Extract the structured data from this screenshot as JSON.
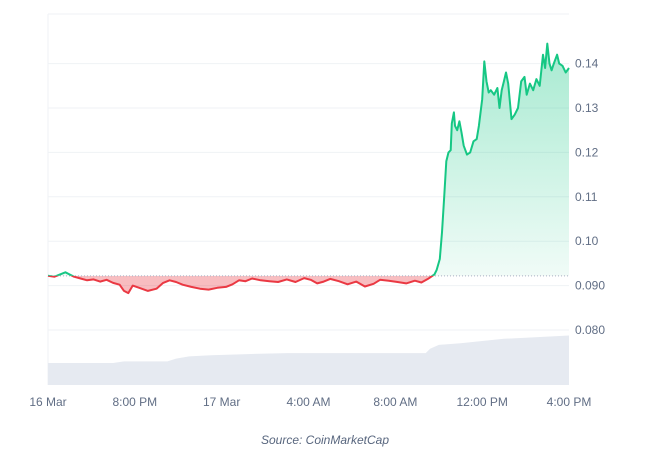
{
  "chart_data": {
    "type": "area",
    "title": "",
    "xlabel": "",
    "ylabel": "",
    "baseline": 0.0922,
    "ylim": [
      0.07,
      0.147
    ],
    "xlim": [
      0,
      24
    ],
    "x_tick_labels": [
      {
        "x": 0,
        "label": "16 Mar"
      },
      {
        "x": 4,
        "label": "8:00 PM"
      },
      {
        "x": 8,
        "label": "17 Mar"
      },
      {
        "x": 12,
        "label": "4:00 AM"
      },
      {
        "x": 16,
        "label": "8:00 AM"
      },
      {
        "x": 20,
        "label": "12:00 PM"
      },
      {
        "x": 24,
        "label": "4:00 PM"
      }
    ],
    "y_ticks": [
      {
        "value": 0.08,
        "label": "0.080"
      },
      {
        "value": 0.09,
        "label": "0.090"
      },
      {
        "value": 0.1,
        "label": "0.10"
      },
      {
        "value": 0.11,
        "label": "0.11"
      },
      {
        "value": 0.12,
        "label": "0.12"
      },
      {
        "value": 0.13,
        "label": "0.13"
      },
      {
        "value": 0.14,
        "label": "0.14"
      }
    ],
    "grid": true,
    "colors": {
      "up": "#16c784",
      "down": "#ea3943",
      "volume": "#e6eaf1",
      "grid": "#eff2f5",
      "baseline": "#a6b0c3"
    },
    "series": [
      {
        "values": [
          [
            0.0,
            0.0922
          ],
          [
            0.3,
            0.092
          ],
          [
            0.6,
            0.0926
          ],
          [
            0.8,
            0.093
          ],
          [
            1.0,
            0.0925
          ],
          [
            1.2,
            0.092
          ],
          [
            1.5,
            0.0916
          ],
          [
            1.8,
            0.0912
          ],
          [
            2.1,
            0.0914
          ],
          [
            2.4,
            0.0909
          ],
          [
            2.7,
            0.0913
          ],
          [
            3.0,
            0.0906
          ],
          [
            3.3,
            0.0902
          ],
          [
            3.5,
            0.0888
          ],
          [
            3.7,
            0.0883
          ],
          [
            3.9,
            0.09
          ],
          [
            4.2,
            0.0895
          ],
          [
            4.6,
            0.0888
          ],
          [
            5.0,
            0.0893
          ],
          [
            5.3,
            0.0906
          ],
          [
            5.6,
            0.0912
          ],
          [
            5.9,
            0.0908
          ],
          [
            6.2,
            0.0902
          ],
          [
            6.6,
            0.0897
          ],
          [
            7.0,
            0.0893
          ],
          [
            7.4,
            0.0891
          ],
          [
            7.8,
            0.0895
          ],
          [
            8.2,
            0.0897
          ],
          [
            8.5,
            0.0903
          ],
          [
            8.8,
            0.0912
          ],
          [
            9.1,
            0.091
          ],
          [
            9.4,
            0.0916
          ],
          [
            9.8,
            0.0912
          ],
          [
            10.2,
            0.091
          ],
          [
            10.6,
            0.0908
          ],
          [
            11.0,
            0.0914
          ],
          [
            11.4,
            0.0908
          ],
          [
            11.8,
            0.0917
          ],
          [
            12.1,
            0.0913
          ],
          [
            12.4,
            0.0905
          ],
          [
            12.7,
            0.0909
          ],
          [
            13.0,
            0.0915
          ],
          [
            13.4,
            0.091
          ],
          [
            13.8,
            0.0903
          ],
          [
            14.2,
            0.0909
          ],
          [
            14.6,
            0.0898
          ],
          [
            15.0,
            0.0904
          ],
          [
            15.3,
            0.0913
          ],
          [
            15.7,
            0.0911
          ],
          [
            16.1,
            0.0908
          ],
          [
            16.5,
            0.0905
          ],
          [
            16.9,
            0.0911
          ],
          [
            17.2,
            0.0907
          ],
          [
            17.5,
            0.0915
          ],
          [
            17.8,
            0.0925
          ],
          [
            17.9,
            0.0935
          ],
          [
            18.05,
            0.096
          ],
          [
            18.15,
            0.102
          ],
          [
            18.25,
            0.11
          ],
          [
            18.35,
            0.118
          ],
          [
            18.45,
            0.12
          ],
          [
            18.55,
            0.1205
          ],
          [
            18.6,
            0.1265
          ],
          [
            18.7,
            0.129
          ],
          [
            18.75,
            0.126
          ],
          [
            18.85,
            0.125
          ],
          [
            18.95,
            0.127
          ],
          [
            19.05,
            0.1245
          ],
          [
            19.15,
            0.1215
          ],
          [
            19.3,
            0.1195
          ],
          [
            19.45,
            0.12
          ],
          [
            19.6,
            0.1225
          ],
          [
            19.75,
            0.123
          ],
          [
            19.85,
            0.126
          ],
          [
            20.0,
            0.132
          ],
          [
            20.1,
            0.1405
          ],
          [
            20.2,
            0.136
          ],
          [
            20.3,
            0.1335
          ],
          [
            20.4,
            0.134
          ],
          [
            20.55,
            0.133
          ],
          [
            20.7,
            0.1345
          ],
          [
            20.8,
            0.13
          ],
          [
            20.9,
            0.134
          ],
          [
            21.0,
            0.136
          ],
          [
            21.1,
            0.138
          ],
          [
            21.2,
            0.1355
          ],
          [
            21.35,
            0.1275
          ],
          [
            21.5,
            0.1285
          ],
          [
            21.65,
            0.13
          ],
          [
            21.8,
            0.136
          ],
          [
            21.95,
            0.137
          ],
          [
            22.05,
            0.133
          ],
          [
            22.2,
            0.1355
          ],
          [
            22.35,
            0.134
          ],
          [
            22.5,
            0.1365
          ],
          [
            22.65,
            0.135
          ],
          [
            22.8,
            0.142
          ],
          [
            22.9,
            0.139
          ],
          [
            23.0,
            0.1445
          ],
          [
            23.1,
            0.14
          ],
          [
            23.2,
            0.1385
          ],
          [
            23.3,
            0.14
          ],
          [
            23.45,
            0.142
          ],
          [
            23.55,
            0.14
          ],
          [
            23.7,
            0.1395
          ],
          [
            23.85,
            0.138
          ],
          [
            24.0,
            0.139
          ]
        ]
      }
    ],
    "volume": [
      [
        0,
        0.4
      ],
      [
        3.0,
        0.4
      ],
      [
        3.5,
        0.43
      ],
      [
        5.5,
        0.43
      ],
      [
        5.9,
        0.48
      ],
      [
        6.5,
        0.52
      ],
      [
        7.5,
        0.54
      ],
      [
        9.0,
        0.56
      ],
      [
        11.0,
        0.58
      ],
      [
        13.0,
        0.58
      ],
      [
        15.0,
        0.58
      ],
      [
        17.4,
        0.58
      ],
      [
        17.6,
        0.66
      ],
      [
        18.0,
        0.73
      ],
      [
        19.0,
        0.76
      ],
      [
        20.0,
        0.8
      ],
      [
        21.0,
        0.84
      ],
      [
        22.0,
        0.86
      ],
      [
        23.0,
        0.88
      ],
      [
        24.0,
        0.9
      ]
    ],
    "source": "Source: CoinMarketCap"
  }
}
